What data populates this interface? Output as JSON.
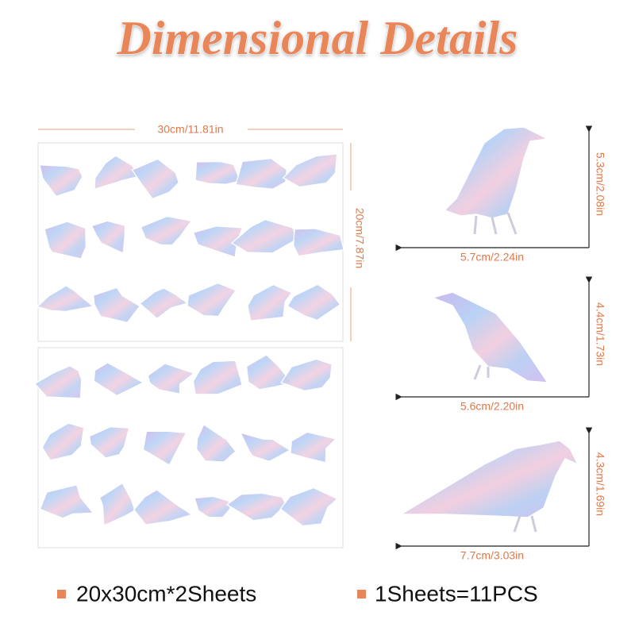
{
  "title": "Dimensional Details",
  "sheet": {
    "width_label": "30cm/11.81in",
    "height_label": "20cm/7.87in"
  },
  "birds": [
    {
      "height_label": "5.3cm/2.08in",
      "width_label": "5.7cm/2.24in"
    },
    {
      "height_label": "4.4cm/1.73in",
      "width_label": "5.6cm/2.20in"
    },
    {
      "height_label": "4.3cm/1.69in",
      "width_label": "7.7cm/3.03in"
    }
  ],
  "footer": [
    "20x30cm*2Sheets",
    "1Sheets=11PCS"
  ]
}
